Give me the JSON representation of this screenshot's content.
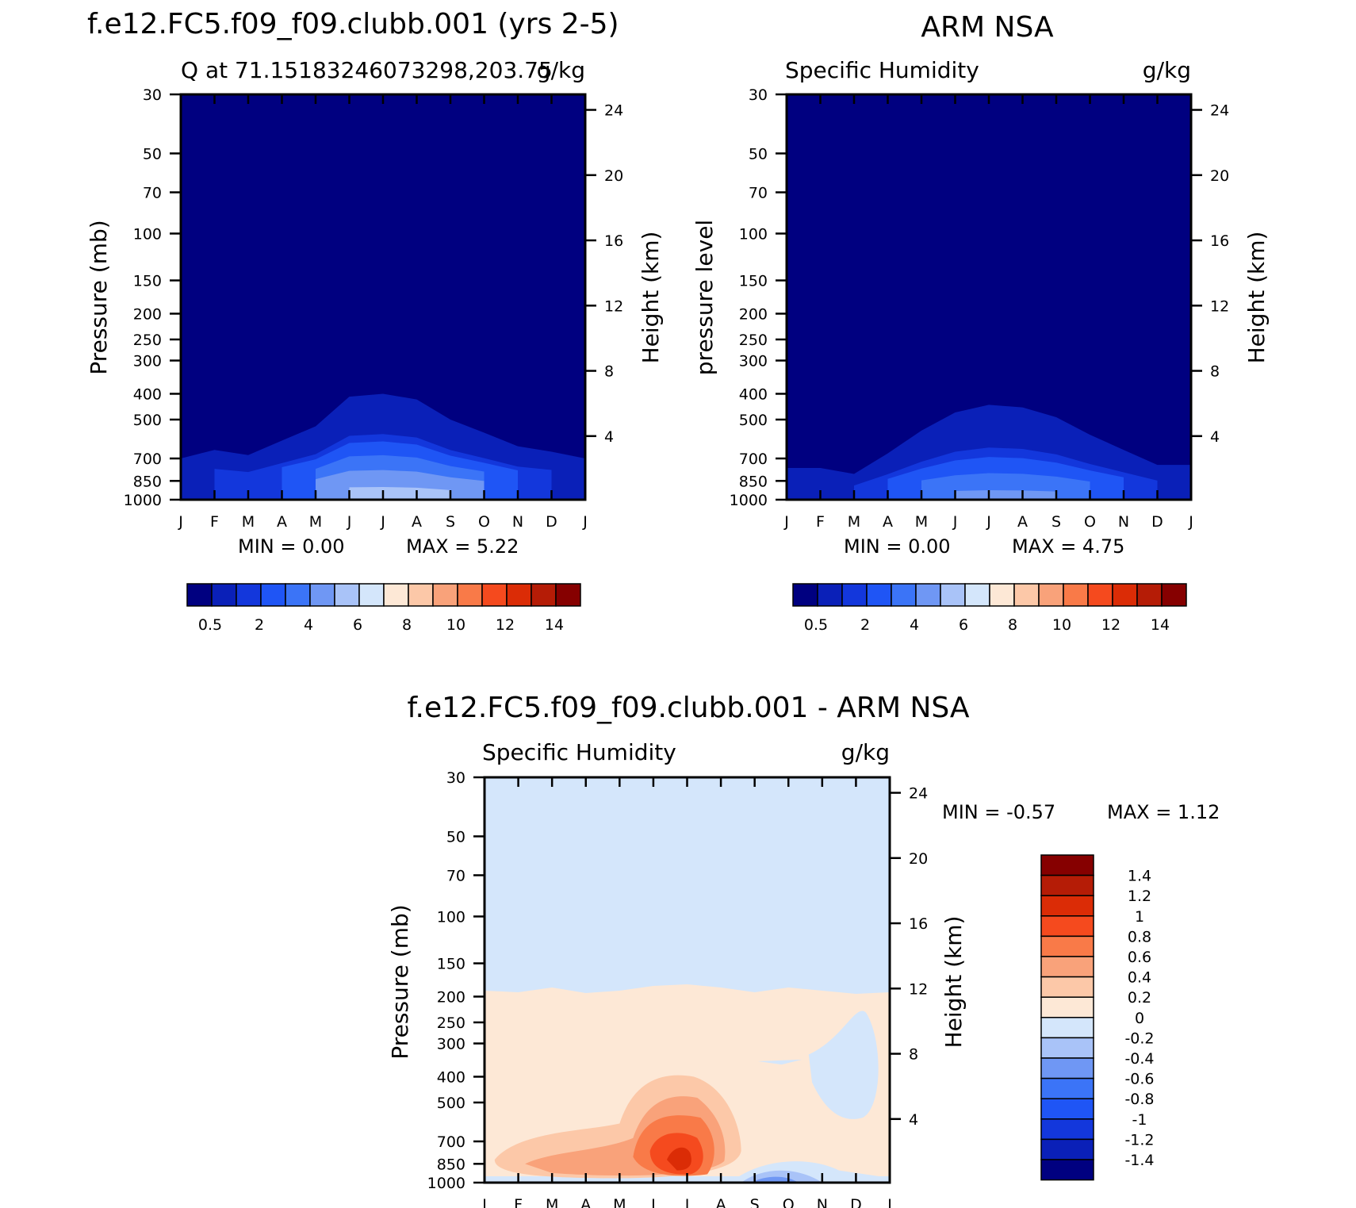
{
  "colors": {
    "seq": [
      "#000080",
      "#0a20b8",
      "#1337dc",
      "#1f55f5",
      "#3b74f7",
      "#6f97f4",
      "#a9c3f8",
      "#d4e6fb",
      "#fde8d6",
      "#fcc8a8",
      "#f9a27a",
      "#f97a48",
      "#f54a1e",
      "#db2c06",
      "#b51c06",
      "#860000"
    ],
    "div": [
      "#000080",
      "#0a20b8",
      "#1337dc",
      "#1f55f5",
      "#3b74f7",
      "#6f97f4",
      "#a9c3f8",
      "#d4e6fb",
      "#fde8d6",
      "#fcc8a8",
      "#f9a27a",
      "#f97a48",
      "#f54a1e",
      "#db2c06",
      "#b51c06",
      "#860000"
    ]
  },
  "chart_data": [
    {
      "id": "model",
      "type": "heatmap",
      "title": "f.e12.FC5.f09_f09.clubb.001 (yrs 2-5)",
      "left_label": "Q at 71.15183246073298,203.75",
      "right_label": "g/kg",
      "xlabel": "",
      "ylabel": "Pressure (mb)",
      "y2label": "Height (km)",
      "months": [
        "J",
        "F",
        "M",
        "A",
        "M",
        "J",
        "J",
        "A",
        "S",
        "O",
        "N",
        "D",
        "J"
      ],
      "pressure_ticks": [
        "30",
        "50",
        "70",
        "100",
        "150",
        "200",
        "250",
        "300",
        "400",
        "500",
        "700",
        "850",
        "1000"
      ],
      "height_ticks": [
        "24",
        "20",
        "16",
        "12",
        "8",
        "4"
      ],
      "ylim": [
        30,
        1000
      ],
      "min_text": "MIN =    0.00",
      "max_text": "MAX =     5.22",
      "colorbar_labels": [
        "0.5",
        "2",
        "4",
        "6",
        "8",
        "10",
        "12",
        "14"
      ],
      "contour_levels": [
        0.5,
        1,
        2,
        3,
        4,
        5
      ],
      "top_pressure": [
        [
          0,
          700
        ],
        [
          1,
          650
        ],
        [
          2,
          680
        ],
        [
          3,
          600
        ],
        [
          4,
          530
        ],
        [
          5,
          410
        ],
        [
          6,
          400
        ],
        [
          7,
          420
        ],
        [
          8,
          500
        ],
        [
          9,
          560
        ],
        [
          10,
          630
        ],
        [
          11,
          660
        ],
        [
          12,
          700
        ]
      ],
      "min": 0.0,
      "max": 5.22
    },
    {
      "id": "obs",
      "type": "heatmap",
      "title": "ARM NSA",
      "left_label": "Specific Humidity",
      "right_label": "g/kg",
      "xlabel": "",
      "ylabel": "pressure level",
      "y2label": "Height (km)",
      "months": [
        "J",
        "F",
        "M",
        "A",
        "M",
        "J",
        "J",
        "A",
        "S",
        "O",
        "N",
        "D",
        "J"
      ],
      "pressure_ticks": [
        "30",
        "50",
        "70",
        "100",
        "150",
        "200",
        "250",
        "300",
        "400",
        "500",
        "700",
        "850",
        "1000"
      ],
      "height_ticks": [
        "24",
        "20",
        "16",
        "12",
        "8",
        "4"
      ],
      "ylim": [
        30,
        1000
      ],
      "min_text": "MIN =    0.00",
      "max_text": "MAX =     4.75",
      "colorbar_labels": [
        "0.5",
        "2",
        "4",
        "6",
        "8",
        "10",
        "12",
        "14"
      ],
      "contour_levels": [
        0.5,
        1,
        2,
        3,
        4
      ],
      "top_pressure": [
        [
          0,
          760
        ],
        [
          1,
          760
        ],
        [
          2,
          800
        ],
        [
          3,
          670
        ],
        [
          4,
          550
        ],
        [
          5,
          470
        ],
        [
          6,
          440
        ],
        [
          7,
          450
        ],
        [
          8,
          490
        ],
        [
          9,
          570
        ],
        [
          10,
          650
        ],
        [
          11,
          740
        ],
        [
          12,
          740
        ]
      ],
      "min": 0.0,
      "max": 4.75
    },
    {
      "id": "diff",
      "type": "heatmap",
      "title": "f.e12.FC5.f09_f09.clubb.001 - ARM NSA",
      "left_label": "Specific Humidity",
      "right_label": "g/kg",
      "xlabel": "",
      "ylabel": "Pressure (mb)",
      "y2label": "Height (km)",
      "months": [
        "J",
        "F",
        "M",
        "A",
        "M",
        "J",
        "J",
        "A",
        "S",
        "O",
        "N",
        "D",
        "J"
      ],
      "pressure_ticks": [
        "30",
        "50",
        "70",
        "100",
        "150",
        "200",
        "250",
        "300",
        "400",
        "500",
        "700",
        "850",
        "1000"
      ],
      "height_ticks": [
        "24",
        "20",
        "16",
        "12",
        "8",
        "4"
      ],
      "ylim": [
        30,
        1000
      ],
      "min_text": "MIN =   -0.57",
      "max_text": "MAX =     1.12",
      "colorbar_labels": [
        "1.4",
        "1.2",
        "1",
        "0.8",
        "0.6",
        "0.4",
        "0.2",
        "0",
        "-0.2",
        "-0.4",
        "-0.6",
        "-0.8",
        "-1",
        "-1.2",
        "-1.4"
      ],
      "positive_anomaly_top_pressure": 190,
      "max_anomaly_month": "J",
      "min": -0.57,
      "max": 1.12
    }
  ]
}
